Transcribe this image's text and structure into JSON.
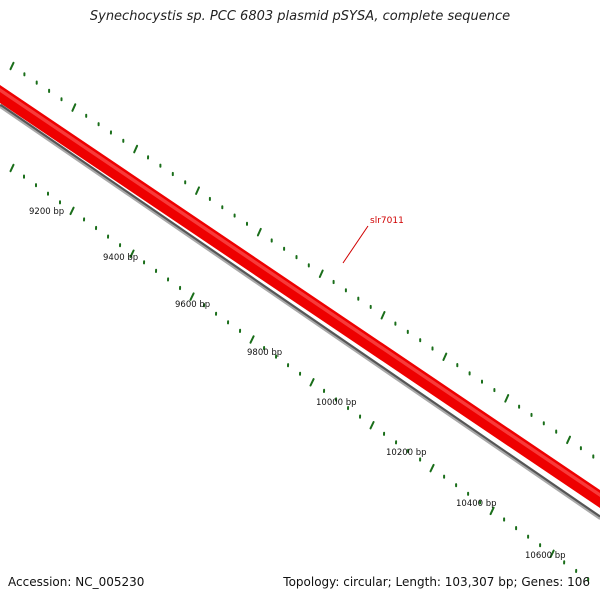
{
  "title": "Synechocystis sp. PCC 6803 plasmid pSYSA, complete sequence",
  "accession": "Accession: NC_005230",
  "summary": "Topology: circular; Length: 103,307 bp; Genes: 106",
  "colors": {
    "gene_strand": "#ee0000",
    "backbone": "#777777",
    "tick_marks": "#1a6e1a",
    "gene_label": "#d00000"
  },
  "gene": {
    "label": "slr7011"
  },
  "ticks": [
    {
      "label": "9200 bp"
    },
    {
      "label": "9400 bp"
    },
    {
      "label": "9600 bp"
    },
    {
      "label": "9800 bp"
    },
    {
      "label": "10000 bp"
    },
    {
      "label": "10200 bp"
    },
    {
      "label": "10400 bp"
    },
    {
      "label": "10600 bp"
    }
  ]
}
